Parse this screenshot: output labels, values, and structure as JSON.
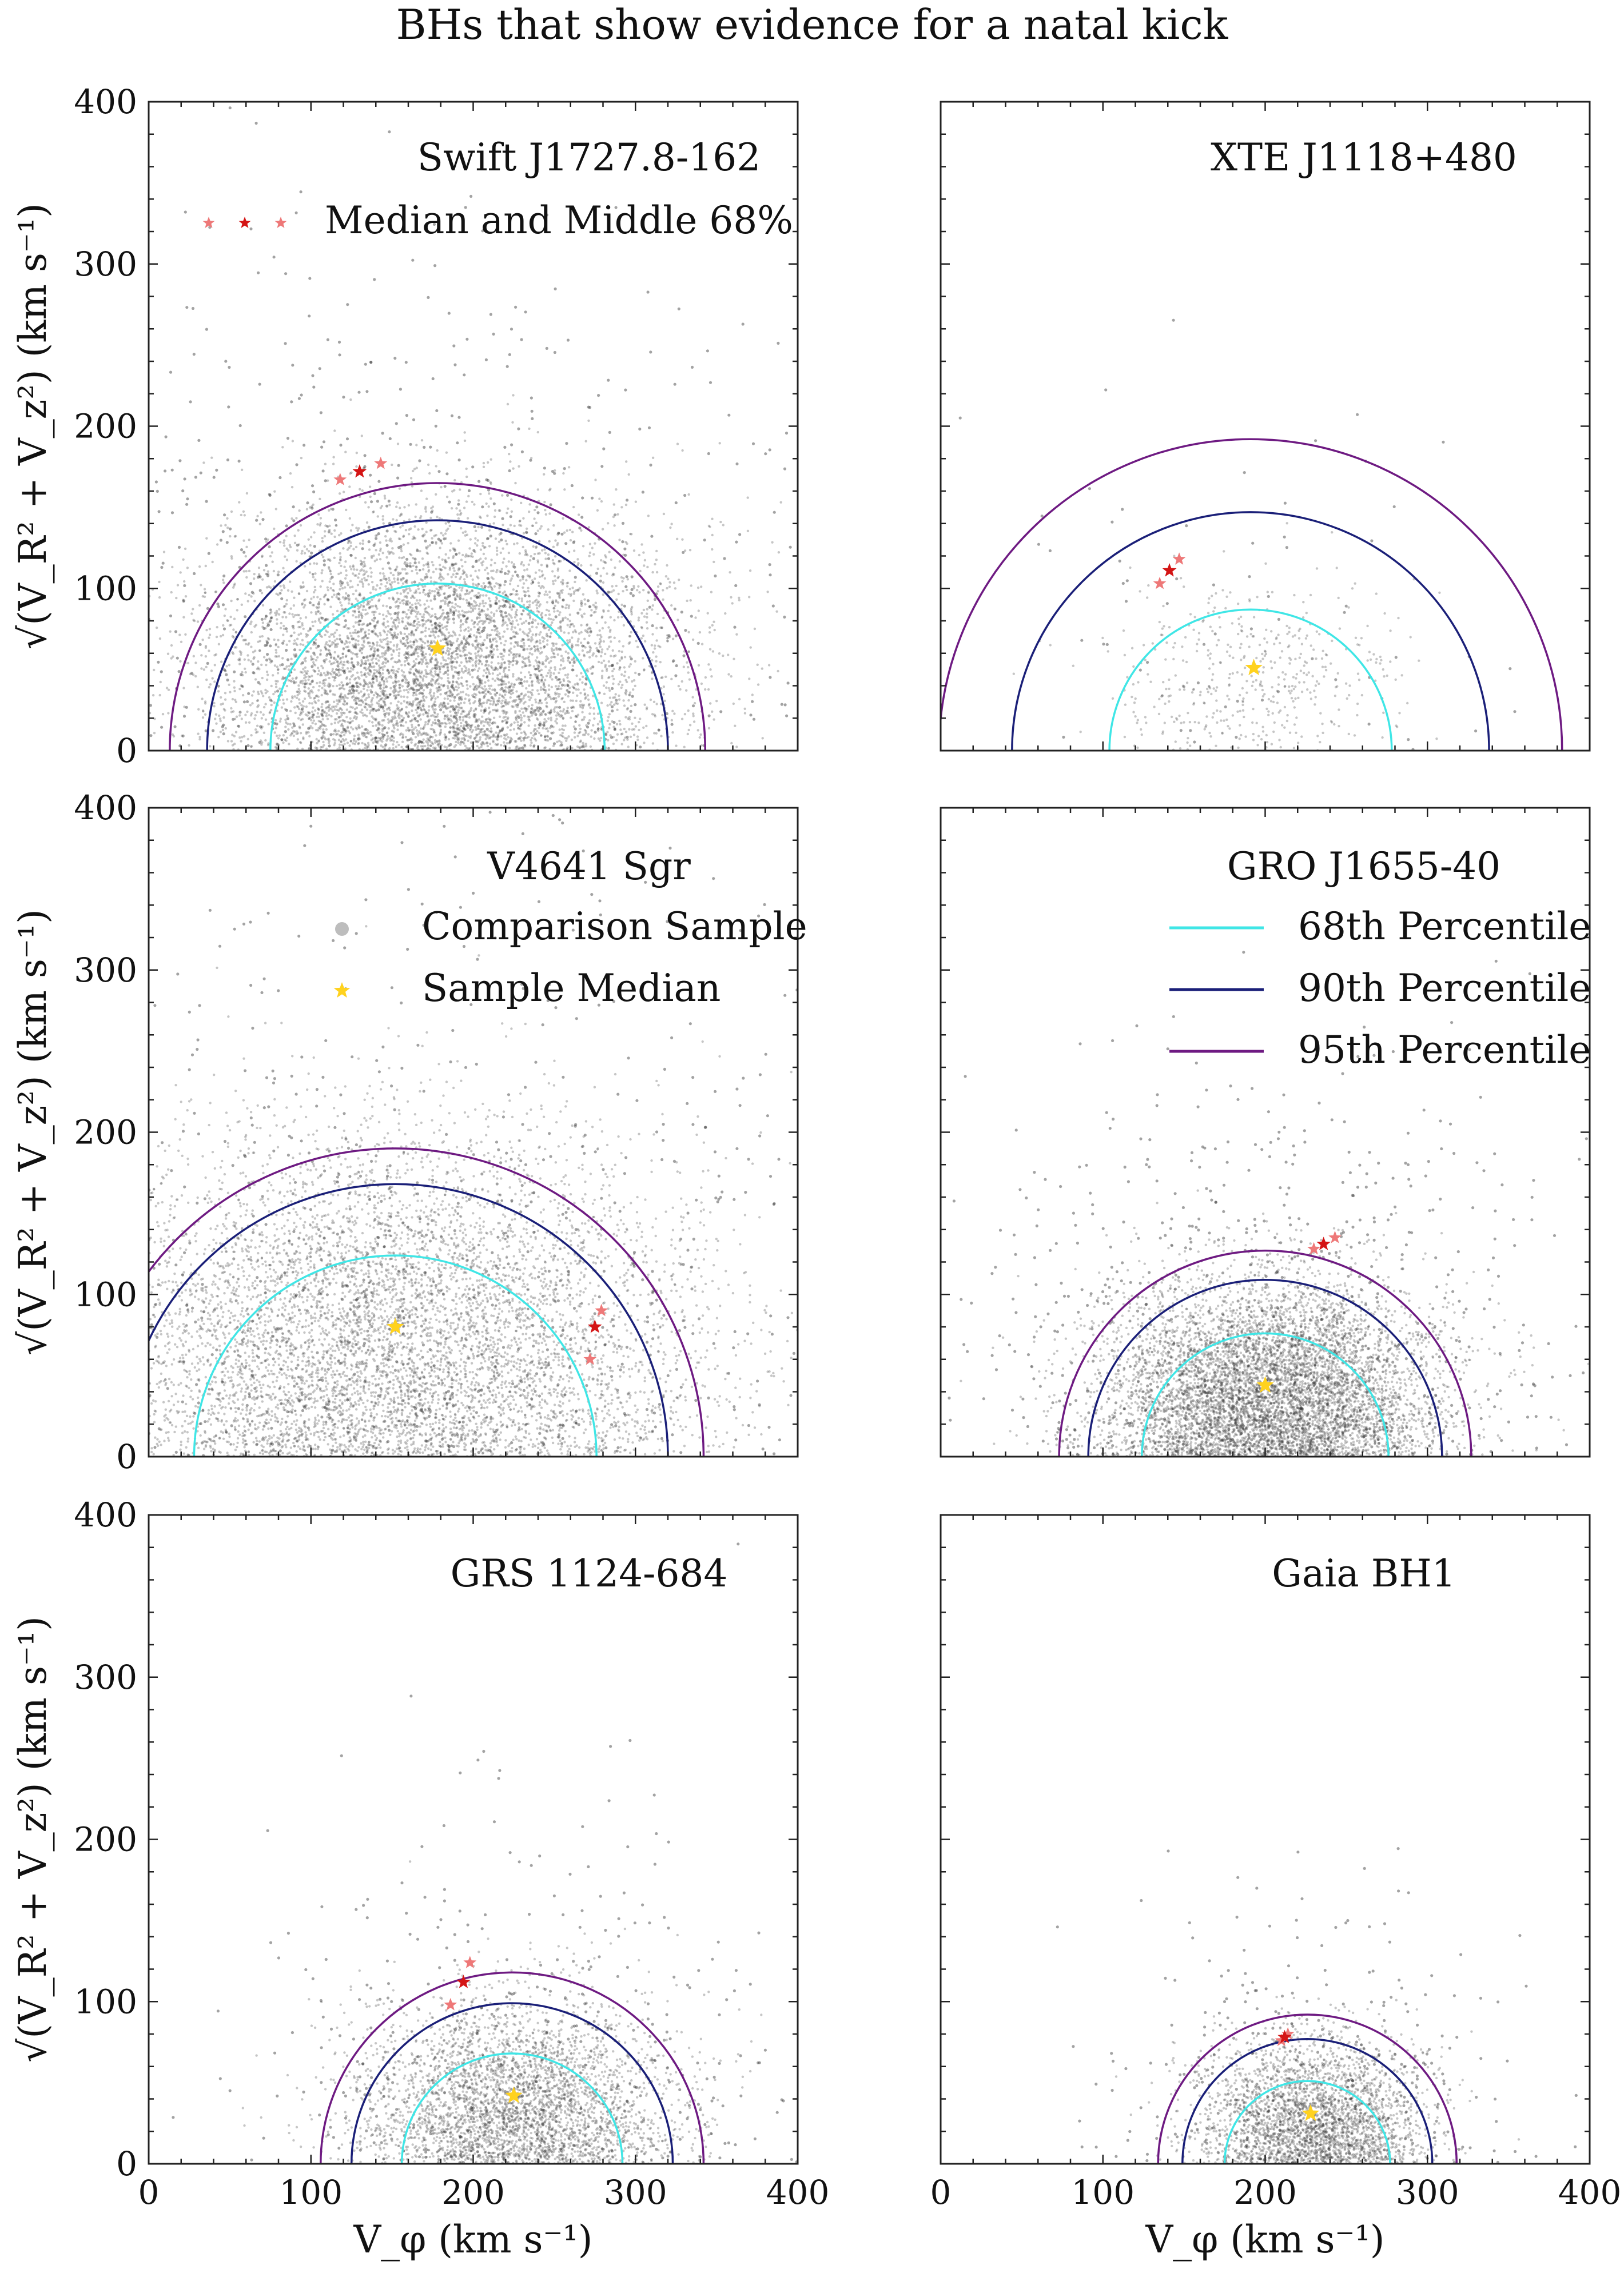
{
  "figure": {
    "title": "BHs that show evidence for a natal kick",
    "xlabel": "V_φ (km s⁻¹)",
    "ylabel": "√(V_R² + V_z²) (km s⁻¹)",
    "colors": {
      "p68": "#3fe6e6",
      "p90": "#1a1f78",
      "p95": "#6e1a82",
      "median_star": "#ffd21e",
      "bh_star": "#d41414",
      "bh_star_light": "#ee7878",
      "scatter": "#333333"
    },
    "legends": {
      "bh": {
        "label": "Median and Middle 68%"
      },
      "sample": [
        {
          "label": "Comparison Sample",
          "icon": "grey-dot"
        },
        {
          "label": "Sample Median",
          "icon": "gold-star"
        }
      ],
      "contours": [
        {
          "label": "68th Percentile",
          "color": "#3fe6e6"
        },
        {
          "label": "90th Percentile",
          "color": "#1a1f78"
        },
        {
          "label": "95th Percentile",
          "color": "#6e1a82"
        }
      ]
    }
  },
  "chart_data": [
    {
      "type": "scatter",
      "title": "Swift J1727.8-162",
      "xlim": [
        0,
        400
      ],
      "ylim": [
        0,
        400
      ],
      "xticks": [
        0,
        100,
        200,
        300,
        400
      ],
      "yticks": [
        0,
        100,
        200,
        300,
        400
      ],
      "sample": {
        "n": 7000,
        "cx": 178,
        "cy": 55,
        "sx": 60,
        "sy": 40,
        "spread": 1.2
      },
      "sample_median": [
        178,
        63
      ],
      "center_x": 178,
      "contours": {
        "r68": 103,
        "r90": 142,
        "r95": 165
      },
      "bh": {
        "median": [
          130,
          172
        ],
        "low": [
          118,
          167
        ],
        "high": [
          143,
          177
        ]
      }
    },
    {
      "type": "scatter",
      "title": "XTE J1118+480",
      "xlim": [
        0,
        400
      ],
      "ylim": [
        0,
        400
      ],
      "xticks": [
        0,
        100,
        200,
        300,
        400
      ],
      "yticks": [
        0,
        100,
        200,
        300,
        400
      ],
      "sample": {
        "n": 550,
        "cx": 193,
        "cy": 45,
        "sx": 40,
        "sy": 27,
        "spread": 1.1
      },
      "sample_median": [
        193,
        51
      ],
      "center_x": 191,
      "contours": {
        "r68": 87,
        "r90": 147,
        "r95": 192
      },
      "bh": {
        "median": [
          141,
          111
        ],
        "low": [
          135,
          103
        ],
        "high": [
          147,
          118
        ]
      }
    },
    {
      "type": "scatter",
      "title": "V4641 Sgr",
      "xlim": [
        0,
        400
      ],
      "ylim": [
        0,
        400
      ],
      "xticks": [
        0,
        100,
        200,
        300,
        400
      ],
      "yticks": [
        0,
        100,
        200,
        300,
        400
      ],
      "sample": {
        "n": 8000,
        "cx": 152,
        "cy": 70,
        "sx": 75,
        "sy": 52,
        "spread": 1.25
      },
      "sample_median": [
        152,
        80
      ],
      "center_x": 152,
      "contours": {
        "r68": 124,
        "r90": 168,
        "r95": 190
      },
      "bh": {
        "median": [
          275,
          80
        ],
        "low": [
          272,
          60
        ],
        "high": [
          279,
          90
        ]
      }
    },
    {
      "type": "scatter",
      "title": "GRO J1655-40",
      "xlim": [
        0,
        400
      ],
      "ylim": [
        0,
        400
      ],
      "xticks": [
        0,
        100,
        200,
        300,
        400
      ],
      "yticks": [
        0,
        100,
        200,
        300,
        400
      ],
      "sample": {
        "n": 7500,
        "cx": 202,
        "cy": 38,
        "sx": 42,
        "sy": 30,
        "spread": 1.2
      },
      "sample_median": [
        200,
        44
      ],
      "center_x": 200,
      "contours": {
        "r68": 76,
        "r90": 109,
        "r95": 127
      },
      "bh": {
        "median": [
          236,
          131
        ],
        "low": [
          230,
          128
        ],
        "high": [
          243,
          135
        ]
      }
    },
    {
      "type": "scatter",
      "title": "GRS 1124-684",
      "xlim": [
        0,
        400
      ],
      "ylim": [
        0,
        400
      ],
      "xticks": [
        0,
        100,
        200,
        300,
        400
      ],
      "yticks": [
        0,
        100,
        200,
        300,
        400
      ],
      "sample": {
        "n": 4000,
        "cx": 226,
        "cy": 36,
        "sx": 38,
        "sy": 27,
        "spread": 1.25
      },
      "sample_median": [
        225,
        42
      ],
      "center_x": 224,
      "contours": {
        "r68": 68,
        "r90": 99,
        "r95": 118
      },
      "bh": {
        "median": [
          194,
          112
        ],
        "low": [
          186,
          98
        ],
        "high": [
          198,
          124
        ]
      }
    },
    {
      "type": "scatter",
      "title": "Gaia BH1",
      "xlim": [
        0,
        400
      ],
      "ylim": [
        0,
        400
      ],
      "xticks": [
        0,
        100,
        200,
        300,
        400
      ],
      "yticks": [
        0,
        100,
        200,
        300,
        400
      ],
      "sample": {
        "n": 3200,
        "cx": 230,
        "cy": 26,
        "sx": 26,
        "sy": 20,
        "spread": 1.3
      },
      "sample_median": [
        228,
        31
      ],
      "center_x": 226,
      "contours": {
        "r68": 51,
        "r90": 77,
        "r95": 92
      },
      "bh": {
        "median": [
          212,
          78
        ],
        "low": [
          210,
          76
        ],
        "high": [
          214,
          80
        ]
      }
    }
  ]
}
